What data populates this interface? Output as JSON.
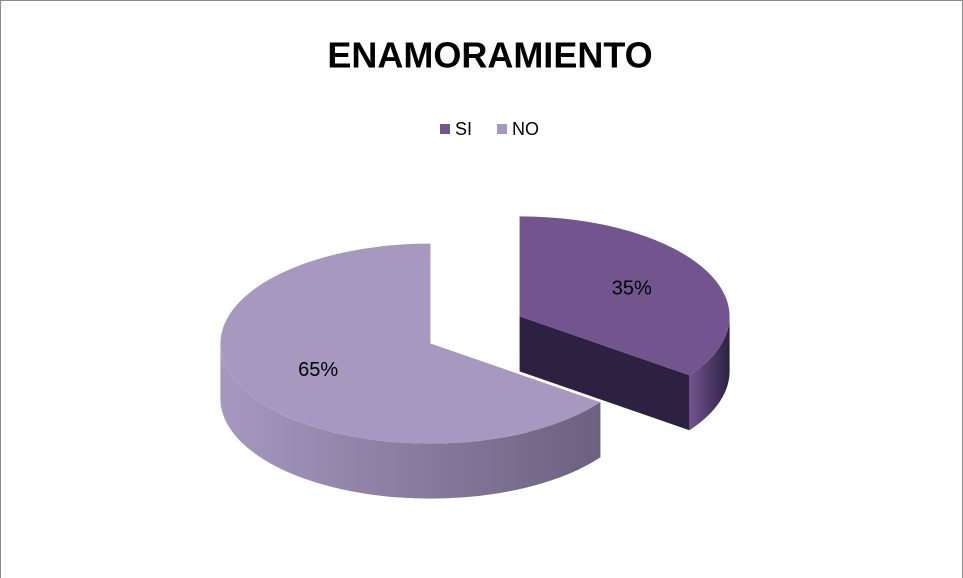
{
  "chart_data": {
    "type": "pie",
    "title": "ENAMORAMIENTO",
    "categories": [
      "SI",
      "NO"
    ],
    "values": [
      35,
      65
    ],
    "value_labels": [
      "35%",
      "65%"
    ],
    "colors": [
      "#72548f",
      "#a698bf"
    ],
    "side_colors": [
      "#2c2140",
      "#6c6180"
    ],
    "legend": "top",
    "three_d": true,
    "exploded": true
  }
}
